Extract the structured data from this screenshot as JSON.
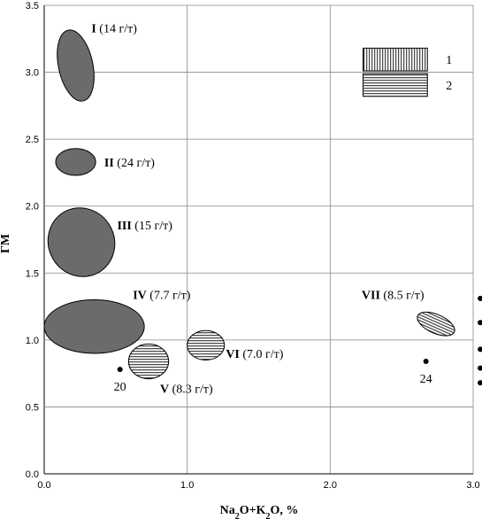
{
  "chart_data": {
    "type": "scatter",
    "title": "",
    "xlabel": {
      "main": "Na",
      "sub1": "2",
      "mid": "O+K",
      "sub2": "2",
      "end": "O, %"
    },
    "ylabel": "ГМ",
    "xlim": [
      0,
      3.0
    ],
    "ylim": [
      0,
      3.5
    ],
    "grid": true,
    "x_ticks": [
      {
        "v": 0,
        "label": "0.0"
      },
      {
        "v": 1,
        "label": "1.0"
      },
      {
        "v": 2,
        "label": "2.0"
      },
      {
        "v": 3,
        "label": "3.0"
      }
    ],
    "y_ticks": [
      {
        "v": 0,
        "label": "0.0"
      },
      {
        "v": 0.5,
        "label": "0.5"
      },
      {
        "v": 1,
        "label": "1.0"
      },
      {
        "v": 1.5,
        "label": "1.5"
      },
      {
        "v": 2,
        "label": "2.0"
      },
      {
        "v": 2.5,
        "label": "2.5"
      },
      {
        "v": 3,
        "label": "3.0"
      },
      {
        "v": 3.5,
        "label": "3.5"
      }
    ],
    "legend": {
      "placement": "top-right",
      "items": [
        {
          "label": "1",
          "pattern": "vertical"
        },
        {
          "label": "2",
          "pattern": "horizontal"
        }
      ]
    },
    "fields": [
      {
        "id": "I",
        "conc": "(14 г/т)",
        "fill": "solid",
        "cx": 0.22,
        "cy": 3.05,
        "rx": 0.12,
        "ry": 0.27,
        "angle": -12,
        "lab_x": 0.33,
        "lab_y": 3.33
      },
      {
        "id": "II",
        "conc": "(24 г/т)",
        "fill": "solid",
        "cx": 0.22,
        "cy": 2.33,
        "rx": 0.14,
        "ry": 0.1,
        "angle": 0,
        "lab_x": 0.42,
        "lab_y": 2.33
      },
      {
        "id": "III",
        "conc": "(15 г/т)",
        "fill": "solid",
        "cx": 0.26,
        "cy": 1.73,
        "rx": 0.23,
        "ry": 0.26,
        "angle": -30,
        "lab_x": 0.51,
        "lab_y": 1.86
      },
      {
        "id": "IV",
        "conc": "(7.7 г/т)",
        "fill": "solid",
        "cx": 0.35,
        "cy": 1.1,
        "rx": 0.35,
        "ry": 0.2,
        "angle": 0,
        "lab_x": 0.62,
        "lab_y": 1.34
      },
      {
        "id": "V",
        "conc": "(8.3 г/т)",
        "fill": "horizontal",
        "cx": 0.73,
        "cy": 0.84,
        "rx": 0.14,
        "ry": 0.13,
        "angle": 0,
        "lab_x": 0.81,
        "lab_y": 0.64
      },
      {
        "id": "VI",
        "conc": "(7.0 г/т)",
        "fill": "horizontal",
        "cx": 1.13,
        "cy": 0.96,
        "rx": 0.13,
        "ry": 0.11,
        "angle": 0,
        "lab_x": 1.27,
        "lab_y": 0.9
      },
      {
        "id": "VII",
        "conc": "(8.5 г/т)",
        "fill": "horizontal",
        "cx": 2.74,
        "cy": 1.12,
        "rx": 0.14,
        "ry": 0.07,
        "angle": 24,
        "lab_x": 2.22,
        "lab_y": 1.34
      }
    ],
    "points": [
      {
        "x": 0.53,
        "y": 0.78,
        "label": "20"
      },
      {
        "x": 2.67,
        "y": 0.84,
        "label": "24"
      },
      {
        "x": 3.05,
        "y": 1.31
      },
      {
        "x": 3.05,
        "y": 1.13
      },
      {
        "x": 3.05,
        "y": 0.93
      },
      {
        "x": 3.05,
        "y": 0.79
      },
      {
        "x": 3.05,
        "y": 0.68
      }
    ]
  }
}
